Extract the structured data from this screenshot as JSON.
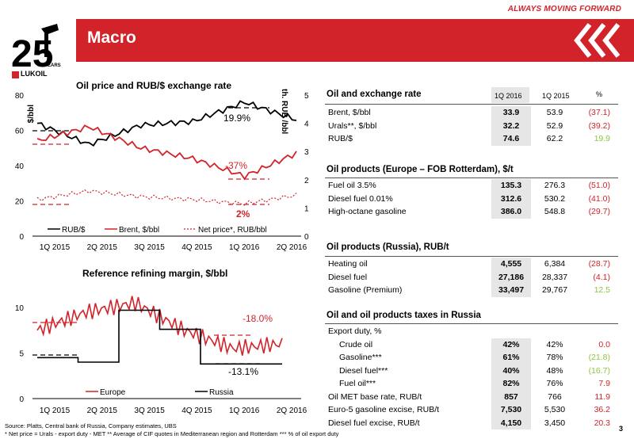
{
  "tagline": "ALWAYS MOVING FORWARD",
  "logo": {
    "text": "LUKOIL",
    "years": "25",
    "years_word": "YEARS"
  },
  "title": "Macro",
  "chart1": {
    "title": "Oil price and RUB/$ exchange rate",
    "y_left_label": "$/bbl",
    "y_right_label": "th. RUB /bbl",
    "y_left_ticks": [
      "80",
      "60",
      "40",
      "20",
      "0"
    ],
    "y_right_ticks": [
      "5",
      "4",
      "3",
      "2",
      "1",
      "0"
    ],
    "x_ticks": [
      "1Q 2015",
      "2Q 2015",
      "3Q 2015",
      "4Q 2015",
      "1Q 2016",
      "2Q 2016"
    ],
    "annotations": [
      "19.9%",
      "-37%",
      "2%"
    ],
    "legend": [
      "RUB/$",
      "Brent, $/bbl",
      "Net price*, RUB/bbl"
    ]
  },
  "chart2": {
    "title": "Reference refining margin, $/bbl",
    "y_ticks": [
      "10",
      "5",
      "0"
    ],
    "x_ticks": [
      "1Q 2015",
      "2Q 2015",
      "3Q 2015",
      "4Q 2015",
      "1Q 2016",
      "2Q 2016"
    ],
    "annotations": [
      "-18.0%",
      "-13.1%"
    ],
    "legend": [
      "Europe",
      "Russia"
    ]
  },
  "colors": {
    "brand_red": "#d2232a",
    "positive_green": "#8dc63f",
    "shade": "#e6e6e6"
  },
  "chart_data": [
    {
      "type": "line",
      "title": "Oil price and RUB/$ exchange rate",
      "x": [
        "1Q 2015",
        "2Q 2015",
        "3Q 2015",
        "4Q 2015",
        "1Q 2016",
        "2Q 2016"
      ],
      "ylim": [
        0,
        80
      ],
      "y2lim": [
        0,
        5
      ],
      "series": [
        {
          "name": "RUB/$",
          "axis": "left",
          "values": [
            64,
            52,
            63,
            65,
            76,
            66
          ]
        },
        {
          "name": "Brent, $/bbl",
          "axis": "left",
          "values": [
            54,
            62,
            50,
            44,
            34,
            47
          ]
        },
        {
          "name": "Net price*, RUB/bbl",
          "axis": "right",
          "values": [
            1.3,
            1.6,
            1.4,
            1.3,
            1.15,
            1.45
          ]
        }
      ]
    },
    {
      "type": "line",
      "title": "Reference refining margin, $/bbl",
      "x": [
        "1Q 2015",
        "2Q 2015",
        "3Q 2015",
        "4Q 2015",
        "1Q 2016",
        "2Q 2016"
      ],
      "ylim": [
        0,
        12
      ],
      "series": [
        {
          "name": "Europe",
          "values": [
            7.5,
            9.5,
            10.5,
            7.5,
            5.5,
            6.0
          ]
        },
        {
          "name": "Russia",
          "values": [
            4.5,
            4.0,
            9.7,
            7.6,
            3.8,
            3.8
          ]
        }
      ]
    }
  ],
  "table": {
    "oil_fx": {
      "title": "Oil and exchange rate",
      "col_1q2016": "1Q 2016",
      "col_1q2015": "1Q 2015",
      "col_pct": "%",
      "rows": [
        {
          "label": "Brent, $/bbl",
          "v1": "33.9",
          "v2": "53.9",
          "pct": "(37.1)"
        },
        {
          "label": "Urals**, $/bbl",
          "v1": "32.2",
          "v2": "52.9",
          "pct": "(39.2)"
        },
        {
          "label": "RUB/$",
          "v1": "74.6",
          "v2": "62.2",
          "pct": "19.9"
        }
      ]
    },
    "products_europe": {
      "title": "Oil products (Europe – FOB Rotterdam), $/t",
      "rows": [
        {
          "label": "Fuel oil 3.5%",
          "v1": "135.3",
          "v2": "276.3",
          "pct": "(51.0)"
        },
        {
          "label": "Diesel fuel 0.01%",
          "v1": "312.6",
          "v2": "530.2",
          "pct": "(41.0)"
        },
        {
          "label": "High-octane gasoline",
          "v1": "386.0",
          "v2": "548.8",
          "pct": "(29.7)"
        }
      ]
    },
    "products_russia": {
      "title": "Oil products (Russia), RUB/t",
      "rows": [
        {
          "label": "Heating oil",
          "v1": "4,555",
          "v2": "6,384",
          "pct": "(28.7)"
        },
        {
          "label": "Diesel fuel",
          "v1": "27,186",
          "v2": "28,337",
          "pct": "(4.1)"
        },
        {
          "label": "Gasoline (Premium)",
          "v1": "33,497",
          "v2": "29,767",
          "pct": "12.5"
        }
      ]
    },
    "taxes": {
      "title": "Oil and oil products taxes in Russia",
      "rows": [
        {
          "label": "Export duty, %",
          "v1": "",
          "v2": "",
          "pct": ""
        },
        {
          "label": "Crude oil",
          "v1": "42%",
          "v2": "42%",
          "pct": "0.0"
        },
        {
          "label": "Gasoline***",
          "v1": "61%",
          "v2": "78%",
          "pct": "(21.8)"
        },
        {
          "label": "Diesel fuel***",
          "v1": "40%",
          "v2": "48%",
          "pct": "(16.7)"
        },
        {
          "label": "Fuel oil***",
          "v1": "82%",
          "v2": "76%",
          "pct": "7.9"
        },
        {
          "label": "Oil MET base rate, RUB/t",
          "v1": "857",
          "v2": "766",
          "pct": "11.9"
        },
        {
          "label": "Euro-5 gasoline excise, RUB/t",
          "v1": "7,530",
          "v2": "5,530",
          "pct": "36.2"
        },
        {
          "label": "Diesel fuel excise, RUB/t",
          "v1": "4,150",
          "v2": "3,450",
          "pct": "20.3"
        }
      ]
    }
  },
  "footer": {
    "source": "Source: Platts, Central bank of Russia, Company estimates, UBS",
    "note": "* Net price = Urals - export duty - MET  ** Average of CIF quotes in Mediterranean region and Rotterdam *** % of oil export duty"
  },
  "page_number": "3"
}
